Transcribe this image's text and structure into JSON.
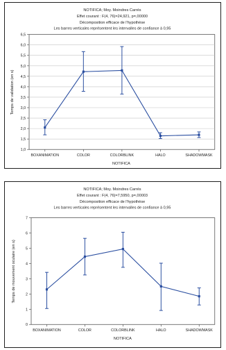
{
  "chart_data": [
    {
      "type": "line",
      "title_lines": [
        "NOTIFICA; Moy. Moindres Carrés",
        "Effet courant : F(4, 76)=24,921, p=,00000",
        "Décomposition efficace de l'hypothèse",
        "Les barres verticales représentent les intervalles de confiance à 0,95"
      ],
      "xlabel": "NOTIFICA",
      "ylabel": "Temps de validation (en s)",
      "categories": [
        "BOXANIMATION",
        "COLOR",
        "COLORBLINK",
        "HALO",
        "SHADOWMASK"
      ],
      "values": [
        2.05,
        4.72,
        4.78,
        1.65,
        1.7
      ],
      "ci_low": [
        1.7,
        3.78,
        3.65,
        1.52,
        1.57
      ],
      "ci_high": [
        2.42,
        5.68,
        5.92,
        1.8,
        1.84
      ],
      "ylim": [
        1.0,
        6.5
      ],
      "yticks": [
        "1,0",
        "1,5",
        "2,0",
        "2,5",
        "3,0",
        "3,5",
        "4,0",
        "4,5",
        "5,0",
        "5,5",
        "6,0",
        "6,5"
      ],
      "grid": true,
      "series_color": "#2a4ea0"
    },
    {
      "type": "line",
      "title_lines": [
        "NOTIFICA; Moy. Moindres Carrés",
        "Effet courant : F(4, 76)=7,5950, p=,00003",
        "Décomposition efficace de l'hypothèse",
        "Les barres verticales représentent les intervalles de confiance à 0,95"
      ],
      "xlabel": "NOTIFICA",
      "ylabel": "Temps de mouvement oculaire (en s)",
      "categories": [
        "BOXANIMATION",
        "COLOR",
        "COLORBLINK",
        "HALO",
        "SHADOWMASK"
      ],
      "values": [
        2.3,
        4.45,
        4.95,
        2.5,
        1.85
      ],
      "ci_low": [
        1.05,
        3.25,
        3.75,
        0.92,
        1.28
      ],
      "ci_high": [
        3.42,
        5.65,
        6.05,
        4.02,
        2.4
      ],
      "ylim": [
        0,
        7
      ],
      "yticks": [
        "0",
        "1",
        "2",
        "3",
        "4",
        "5",
        "6",
        "7"
      ],
      "grid": false,
      "series_color": "#2a4ea0"
    }
  ]
}
